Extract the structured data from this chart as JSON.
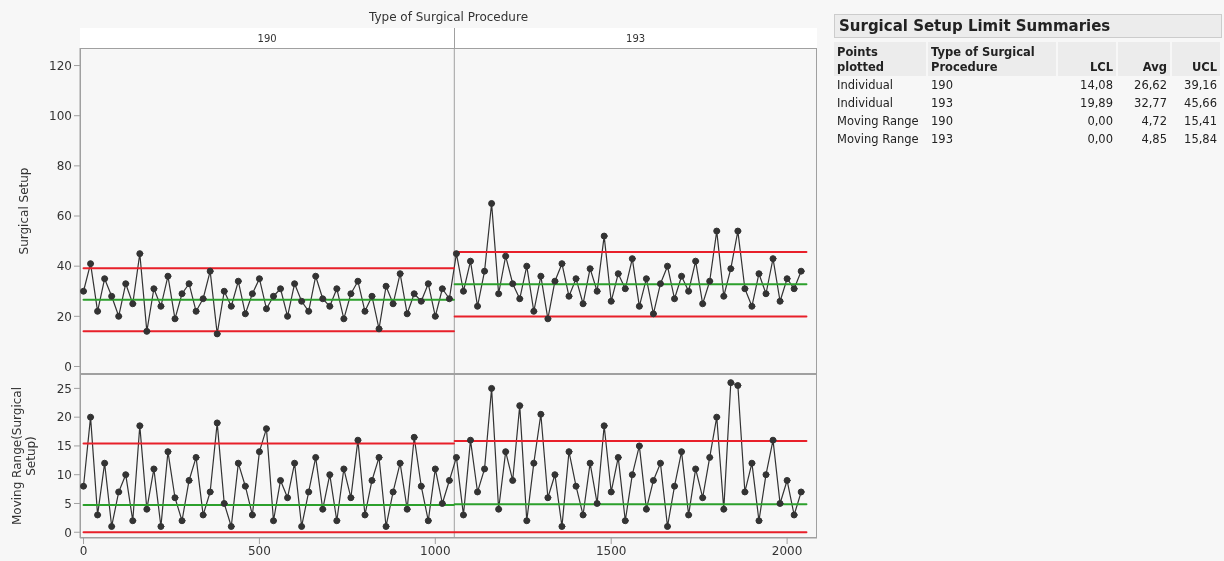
{
  "chart_data": [
    {
      "type": "line",
      "ylabel": "Surgical Setup",
      "annotations": [
        "Type of Surgical Procedure",
        "190",
        "193"
      ],
      "xlim": [
        -10,
        2085
      ],
      "xticks": [
        0,
        500,
        1000,
        1500,
        2000
      ],
      "ylim": [
        -3,
        127
      ],
      "yticks": [
        0,
        20,
        40,
        60,
        80,
        100,
        120
      ],
      "tick_labels": "y",
      "marker": "circle",
      "grid": false,
      "line_style": "solid",
      "x": [
        0,
        20,
        40,
        60,
        80,
        100,
        120,
        140,
        160,
        180,
        200,
        220,
        240,
        260,
        280,
        300,
        320,
        340,
        360,
        380,
        400,
        420,
        440,
        460,
        480,
        500,
        520,
        540,
        560,
        580,
        600,
        620,
        640,
        660,
        680,
        700,
        720,
        740,
        760,
        780,
        800,
        820,
        840,
        860,
        880,
        900,
        920,
        940,
        960,
        980,
        1000,
        1020,
        1040,
        1060,
        1080,
        1100,
        1120,
        1140,
        1160,
        1180,
        1200,
        1220,
        1240,
        1260,
        1280,
        1300,
        1320,
        1340,
        1360,
        1380,
        1400,
        1420,
        1440,
        1460,
        1480,
        1500,
        1520,
        1540,
        1560,
        1580,
        1600,
        1620,
        1640,
        1660,
        1680,
        1700,
        1720,
        1740,
        1760,
        1780,
        1800,
        1820,
        1840,
        1860,
        1880,
        1900,
        1920,
        1940,
        1960,
        1980,
        2000,
        2020,
        2040
      ],
      "ref_lines": [
        {
          "axis": "x",
          "value": 1054,
          "color": "#a0a0a0"
        }
      ],
      "series": [
        {
          "color": "#333333",
          "values": [
            30,
            41,
            22,
            35,
            28,
            20,
            33,
            25,
            45,
            14,
            31,
            24,
            36,
            19,
            29,
            33,
            22,
            27,
            38,
            13,
            30,
            24,
            34,
            21,
            29,
            35,
            23,
            28,
            31,
            20,
            33,
            26,
            22,
            36,
            27,
            24,
            31,
            19,
            29,
            34,
            22,
            28,
            15,
            32,
            25,
            37,
            21,
            29,
            26,
            33,
            20,
            31,
            27,
            45,
            30,
            42,
            24,
            38,
            65,
            29,
            44,
            33,
            27,
            40,
            22,
            36,
            19,
            34,
            41,
            28,
            35,
            25,
            39,
            30,
            52,
            26,
            37,
            31,
            43,
            24,
            35,
            21,
            33,
            40,
            27,
            36,
            30,
            42,
            25,
            34,
            54,
            28,
            39,
            54,
            31,
            24,
            37,
            29,
            43,
            26,
            35,
            31,
            38
          ]
        },
        {
          "color": "#e8202a",
          "marker": "none",
          "x": [
            0,
            1053,
            1054,
            1055,
            2055
          ],
          "values": [
            39.16,
            39.16,
            null,
            45.66,
            45.66
          ]
        },
        {
          "color": "#2ca02c",
          "marker": "none",
          "x": [
            0,
            1053,
            1054,
            1055,
            2055
          ],
          "values": [
            26.62,
            26.62,
            null,
            32.77,
            32.77
          ]
        },
        {
          "color": "#e8202a",
          "marker": "none",
          "x": [
            0,
            1053,
            1054,
            1055,
            2055
          ],
          "values": [
            14.08,
            14.08,
            null,
            19.89,
            19.89
          ]
        }
      ]
    },
    {
      "type": "line",
      "ylabel": "Moving Range(Surgical Setup)",
      "xlim": [
        -10,
        2085
      ],
      "xticks": [
        0,
        500,
        1000,
        1500,
        2000
      ],
      "ylim": [
        -1,
        27.5
      ],
      "yticks": [
        0,
        5,
        10,
        15,
        20,
        25
      ],
      "marker": "circle",
      "grid": false,
      "line_style": "solid",
      "x": [
        0,
        20,
        40,
        60,
        80,
        100,
        120,
        140,
        160,
        180,
        200,
        220,
        240,
        260,
        280,
        300,
        320,
        340,
        360,
        380,
        400,
        420,
        440,
        460,
        480,
        500,
        520,
        540,
        560,
        580,
        600,
        620,
        640,
        660,
        680,
        700,
        720,
        740,
        760,
        780,
        800,
        820,
        840,
        860,
        880,
        900,
        920,
        940,
        960,
        980,
        1000,
        1020,
        1040,
        1060,
        1080,
        1100,
        1120,
        1140,
        1160,
        1180,
        1200,
        1220,
        1240,
        1260,
        1280,
        1300,
        1320,
        1340,
        1360,
        1380,
        1400,
        1420,
        1440,
        1460,
        1480,
        1500,
        1520,
        1540,
        1560,
        1580,
        1600,
        1620,
        1640,
        1660,
        1680,
        1700,
        1720,
        1740,
        1760,
        1780,
        1800,
        1820,
        1840,
        1860,
        1880,
        1900,
        1920,
        1940,
        1960,
        1980,
        2000,
        2020,
        2040
      ],
      "ref_lines": [
        {
          "axis": "x",
          "value": 1054,
          "color": "#a0a0a0"
        }
      ],
      "series": [
        {
          "color": "#333333",
          "values": [
            8,
            20,
            3,
            12,
            1,
            7,
            10,
            2,
            18.5,
            4,
            11,
            1,
            14,
            6,
            2,
            9,
            13,
            3,
            7,
            19,
            5,
            1,
            12,
            8,
            3,
            14,
            18,
            2,
            9,
            6,
            12,
            1,
            7,
            13,
            4,
            10,
            2,
            11,
            6,
            16,
            3,
            9,
            13,
            1,
            7,
            12,
            4,
            16.5,
            8,
            2,
            11,
            5,
            9,
            13,
            3,
            16,
            7,
            11,
            25,
            4,
            14,
            9,
            22,
            2,
            12,
            20.5,
            6,
            10,
            1,
            14,
            8,
            3,
            12,
            5,
            18.5,
            7,
            13,
            2,
            10,
            15,
            4,
            9,
            12,
            1,
            8,
            14,
            3,
            11,
            6,
            13,
            20,
            4,
            26,
            25.5,
            7,
            12,
            2,
            10,
            16,
            5,
            9,
            3,
            7
          ]
        },
        {
          "color": "#e8202a",
          "marker": "none",
          "x": [
            0,
            1053,
            1054,
            1055,
            2055
          ],
          "values": [
            15.41,
            15.41,
            null,
            15.84,
            15.84
          ]
        },
        {
          "color": "#2ca02c",
          "marker": "none",
          "x": [
            0,
            1053,
            1054,
            1055,
            2055
          ],
          "values": [
            4.72,
            4.72,
            null,
            4.85,
            4.85
          ]
        },
        {
          "color": "#e8202a",
          "marker": "none",
          "x": [
            0,
            1053,
            1054,
            1055,
            2055
          ],
          "values": [
            0,
            0,
            null,
            0,
            0
          ]
        }
      ]
    },
    {
      "type": "other",
      "title": "Surgical Setup Limit Summaries",
      "categories": [
        "Points plotted",
        "Type of Surgical Procedure",
        "LCL",
        "Avg",
        "UCL"
      ],
      "cell_labels": [
        [
          "Individual",
          "190",
          "14,08",
          "26,62",
          "39,16"
        ],
        [
          "Individual",
          "193",
          "19,89",
          "32,77",
          "45,66"
        ],
        [
          "Moving Range",
          "190",
          "0,00",
          "4,72",
          "15,41"
        ],
        [
          "Moving Range",
          "193",
          "0,00",
          "4,85",
          "15,84"
        ]
      ]
    }
  ]
}
